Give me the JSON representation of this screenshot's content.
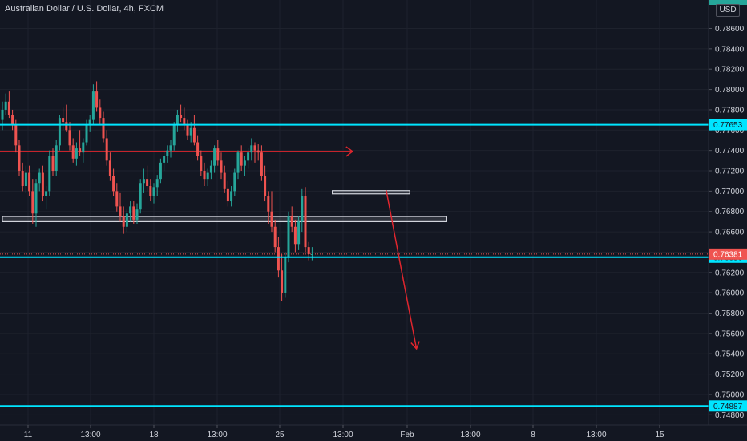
{
  "title": "Australian Dollar / U.S. Dollar, 4h, FXCM",
  "currency": "USD",
  "colors": {
    "background": "#131722",
    "up": "#26a69a",
    "down": "#ef5350",
    "cyan": "#00e5ff",
    "red_line": "#e0262e",
    "box": "#d1d4dc"
  },
  "chart_data": {
    "type": "candlestick",
    "ylim": [
      0.747,
      0.7888
    ],
    "y_ticks": [
      "0.78600",
      "0.78400",
      "0.78200",
      "0.78000",
      "0.77800",
      "0.77600",
      "0.77400",
      "0.77200",
      "0.77000",
      "0.76800",
      "0.76600",
      "0.76400",
      "0.76200",
      "0.76000",
      "0.75800",
      "0.75600",
      "0.75400",
      "0.75200",
      "0.75000",
      "0.74800"
    ],
    "x_ticks": [
      "11",
      "13:00",
      "18",
      "13:00",
      "25",
      "13:00",
      "Feb",
      "13:00",
      "8",
      "13:00",
      "15"
    ],
    "horizontal_lines": [
      {
        "price": 0.77653,
        "label": "0.77653",
        "color": "cyan"
      },
      {
        "price": 0.7635,
        "label": "0.76350",
        "color": "cyan"
      },
      {
        "price": 0.74887,
        "label": "0.74887",
        "color": "cyan"
      }
    ],
    "last_price": {
      "price": 0.76381,
      "label": "0.76381"
    },
    "red_level": 0.7739,
    "boxes": [
      {
        "from_bar": 0,
        "to_bar": 132,
        "top": 0.7675,
        "bottom": 0.767
      },
      {
        "from_bar": 98,
        "to_bar": 121,
        "top": 0.77005,
        "bottom": 0.76975
      }
    ],
    "projection_arrow": {
      "from_bar": 114,
      "from_price": 0.7701,
      "to_bar": 123,
      "to_price": 0.7545
    },
    "candles": [
      [
        0.777,
        0.7788,
        0.776,
        0.778
      ],
      [
        0.778,
        0.7796,
        0.7775,
        0.7788
      ],
      [
        0.7788,
        0.7798,
        0.7772,
        0.7775
      ],
      [
        0.7775,
        0.778,
        0.776,
        0.7765
      ],
      [
        0.7765,
        0.777,
        0.7738,
        0.7745
      ],
      [
        0.7745,
        0.775,
        0.7715,
        0.772
      ],
      [
        0.772,
        0.7728,
        0.77,
        0.7705
      ],
      [
        0.7705,
        0.7725,
        0.7698,
        0.7718
      ],
      [
        0.7718,
        0.7725,
        0.7695,
        0.77
      ],
      [
        0.77,
        0.7712,
        0.7668,
        0.7678
      ],
      [
        0.7678,
        0.7712,
        0.7665,
        0.7708
      ],
      [
        0.7708,
        0.7722,
        0.77,
        0.7718
      ],
      [
        0.7718,
        0.7725,
        0.769,
        0.7695
      ],
      [
        0.7695,
        0.7705,
        0.7682,
        0.77
      ],
      [
        0.77,
        0.774,
        0.7695,
        0.7735
      ],
      [
        0.7735,
        0.7742,
        0.7715,
        0.772
      ],
      [
        0.772,
        0.775,
        0.7715,
        0.7745
      ],
      [
        0.7745,
        0.7775,
        0.774,
        0.7772
      ],
      [
        0.7772,
        0.7782,
        0.776,
        0.7768
      ],
      [
        0.7768,
        0.7785,
        0.7758,
        0.776
      ],
      [
        0.776,
        0.7768,
        0.774,
        0.7745
      ],
      [
        0.7745,
        0.7752,
        0.7728,
        0.7732
      ],
      [
        0.7732,
        0.7748,
        0.7725,
        0.7742
      ],
      [
        0.7742,
        0.776,
        0.7735,
        0.7738
      ],
      [
        0.7738,
        0.7752,
        0.7728,
        0.7748
      ],
      [
        0.7748,
        0.777,
        0.7745,
        0.7765
      ],
      [
        0.7765,
        0.7775,
        0.7758,
        0.777
      ],
      [
        0.777,
        0.7805,
        0.7765,
        0.7798
      ],
      [
        0.7798,
        0.7808,
        0.7778,
        0.7782
      ],
      [
        0.7782,
        0.779,
        0.7765,
        0.7772
      ],
      [
        0.7772,
        0.7778,
        0.7748,
        0.7752
      ],
      [
        0.7752,
        0.776,
        0.7725,
        0.773
      ],
      [
        0.773,
        0.7738,
        0.771,
        0.7715
      ],
      [
        0.7715,
        0.7722,
        0.7695,
        0.77
      ],
      [
        0.77,
        0.7708,
        0.768,
        0.7685
      ],
      [
        0.7685,
        0.7698,
        0.767,
        0.7675
      ],
      [
        0.7675,
        0.7685,
        0.7658,
        0.7665
      ],
      [
        0.7665,
        0.7682,
        0.766,
        0.7678
      ],
      [
        0.7678,
        0.769,
        0.767,
        0.7685
      ],
      [
        0.7685,
        0.769,
        0.7668,
        0.7672
      ],
      [
        0.7672,
        0.7688,
        0.7668,
        0.7682
      ],
      [
        0.7682,
        0.7712,
        0.7678,
        0.7708
      ],
      [
        0.7708,
        0.7722,
        0.7698,
        0.7712
      ],
      [
        0.7712,
        0.7725,
        0.77,
        0.7705
      ],
      [
        0.7705,
        0.7712,
        0.769,
        0.7695
      ],
      [
        0.7695,
        0.7708,
        0.7688,
        0.7704
      ],
      [
        0.7704,
        0.7716,
        0.7695,
        0.7712
      ],
      [
        0.7712,
        0.7732,
        0.7708,
        0.7728
      ],
      [
        0.7728,
        0.774,
        0.772,
        0.7735
      ],
      [
        0.7735,
        0.7745,
        0.7728,
        0.774
      ],
      [
        0.774,
        0.775,
        0.7733,
        0.7745
      ],
      [
        0.7745,
        0.7768,
        0.774,
        0.7765
      ],
      [
        0.7765,
        0.778,
        0.7758,
        0.7775
      ],
      [
        0.7775,
        0.7785,
        0.7768,
        0.7772
      ],
      [
        0.7772,
        0.7782,
        0.776,
        0.7765
      ],
      [
        0.7765,
        0.777,
        0.775,
        0.7755
      ],
      [
        0.7755,
        0.7768,
        0.7748,
        0.7762
      ],
      [
        0.7762,
        0.7775,
        0.7745,
        0.7748
      ],
      [
        0.7748,
        0.7755,
        0.773,
        0.7735
      ],
      [
        0.7735,
        0.774,
        0.7715,
        0.772
      ],
      [
        0.772,
        0.7728,
        0.7705,
        0.7712
      ],
      [
        0.7712,
        0.7722,
        0.7705,
        0.7718
      ],
      [
        0.7718,
        0.773,
        0.7712,
        0.7725
      ],
      [
        0.7725,
        0.7745,
        0.7718,
        0.7742
      ],
      [
        0.7742,
        0.775,
        0.7725,
        0.773
      ],
      [
        0.773,
        0.7738,
        0.7712,
        0.7718
      ],
      [
        0.7718,
        0.7725,
        0.7698,
        0.7702
      ],
      [
        0.7702,
        0.771,
        0.7685,
        0.769
      ],
      [
        0.769,
        0.7705,
        0.7685,
        0.77
      ],
      [
        0.77,
        0.7722,
        0.7695,
        0.7718
      ],
      [
        0.7718,
        0.774,
        0.7712,
        0.7738
      ],
      [
        0.7738,
        0.7745,
        0.772,
        0.7725
      ],
      [
        0.7725,
        0.7735,
        0.7715,
        0.773
      ],
      [
        0.773,
        0.7742,
        0.7722,
        0.7738
      ],
      [
        0.7738,
        0.7752,
        0.773,
        0.7745
      ],
      [
        0.7745,
        0.7748,
        0.7728,
        0.774
      ],
      [
        0.774,
        0.7746,
        0.773,
        0.7738
      ],
      [
        0.7738,
        0.7745,
        0.771,
        0.7715
      ],
      [
        0.7715,
        0.7725,
        0.769,
        0.7695
      ],
      [
        0.7695,
        0.77,
        0.7668,
        0.768
      ],
      [
        0.768,
        0.77,
        0.766,
        0.7665
      ],
      [
        0.7665,
        0.7672,
        0.764,
        0.7645
      ],
      [
        0.7645,
        0.7655,
        0.7615,
        0.7622
      ],
      [
        0.7622,
        0.7638,
        0.7592,
        0.76
      ],
      [
        0.76,
        0.764,
        0.7595,
        0.7635
      ],
      [
        0.7635,
        0.768,
        0.763,
        0.7675
      ],
      [
        0.7675,
        0.7685,
        0.766,
        0.7665
      ],
      [
        0.7665,
        0.7672,
        0.764,
        0.7648
      ],
      [
        0.7648,
        0.7675,
        0.7642,
        0.767
      ],
      [
        0.767,
        0.7702,
        0.766,
        0.7695
      ],
      [
        0.7695,
        0.7704,
        0.764,
        0.7645
      ],
      [
        0.7645,
        0.765,
        0.7632,
        0.7638
      ],
      [
        0.7638,
        0.7645,
        0.7632,
        0.7638
      ]
    ]
  },
  "axis_labels": {
    "last_price_label": "0.76381",
    "line_labels": [
      "0.77653",
      "0.76350",
      "0.74887"
    ]
  }
}
